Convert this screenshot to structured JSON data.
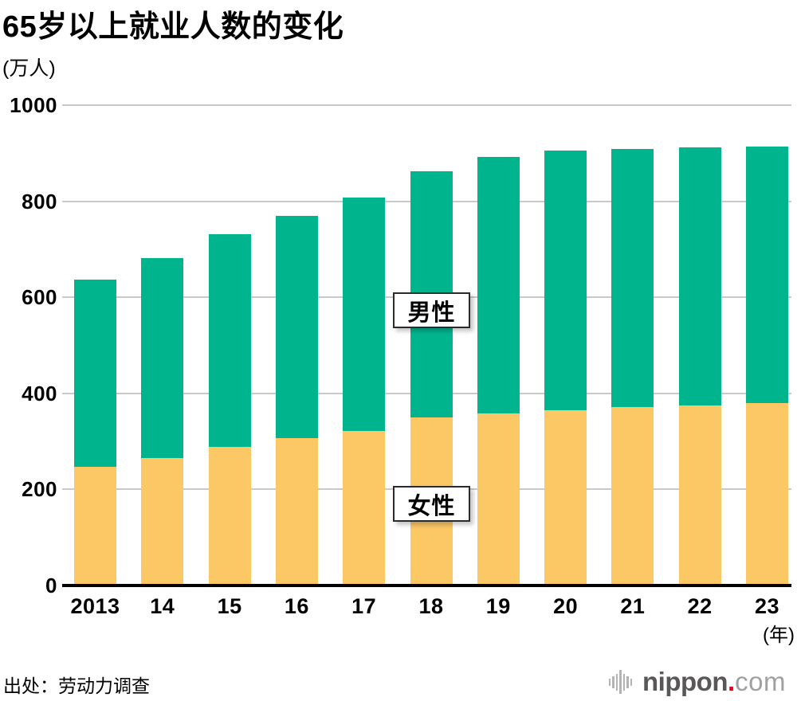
{
  "header": {
    "title": "65岁以上就业人数的变化",
    "unit_label": "(万人)"
  },
  "chart_data": {
    "type": "bar",
    "stacked": true,
    "title": "65岁以上就业人数的变化",
    "unit_label": "(万人)",
    "xaxis_suffix": "(年)",
    "categories": [
      "2013",
      "14",
      "15",
      "16",
      "17",
      "18",
      "19",
      "20",
      "21",
      "22",
      "23"
    ],
    "series": [
      {
        "name": "女性",
        "color": "#fcc765",
        "values": [
          247,
          265,
          288,
          306,
          322,
          350,
          358,
          365,
          371,
          375,
          380
        ]
      },
      {
        "name": "男性",
        "color": "#00b58e",
        "values": [
          390,
          417,
          444,
          464,
          485,
          512,
          534,
          541,
          538,
          537,
          534
        ]
      }
    ],
    "totals": [
      637,
      682,
      732,
      770,
      807,
      862,
      892,
      906,
      909,
      912,
      914
    ],
    "ylim": [
      0,
      1000
    ],
    "yticks": [
      0,
      200,
      400,
      600,
      800,
      1000
    ],
    "grid": "horizontal-only",
    "legend": "floating-labels-inside-plot",
    "gridline_color": "#c9c9c9",
    "axis_color": "#000000"
  },
  "footer": {
    "source": "出处：劳动力调查",
    "logo": {
      "brand": "nippon",
      "dot": ".",
      "tld": "com",
      "brand_color": "#595757",
      "dot_color": "#e60012",
      "tld_color": "#9fa0a0"
    }
  }
}
